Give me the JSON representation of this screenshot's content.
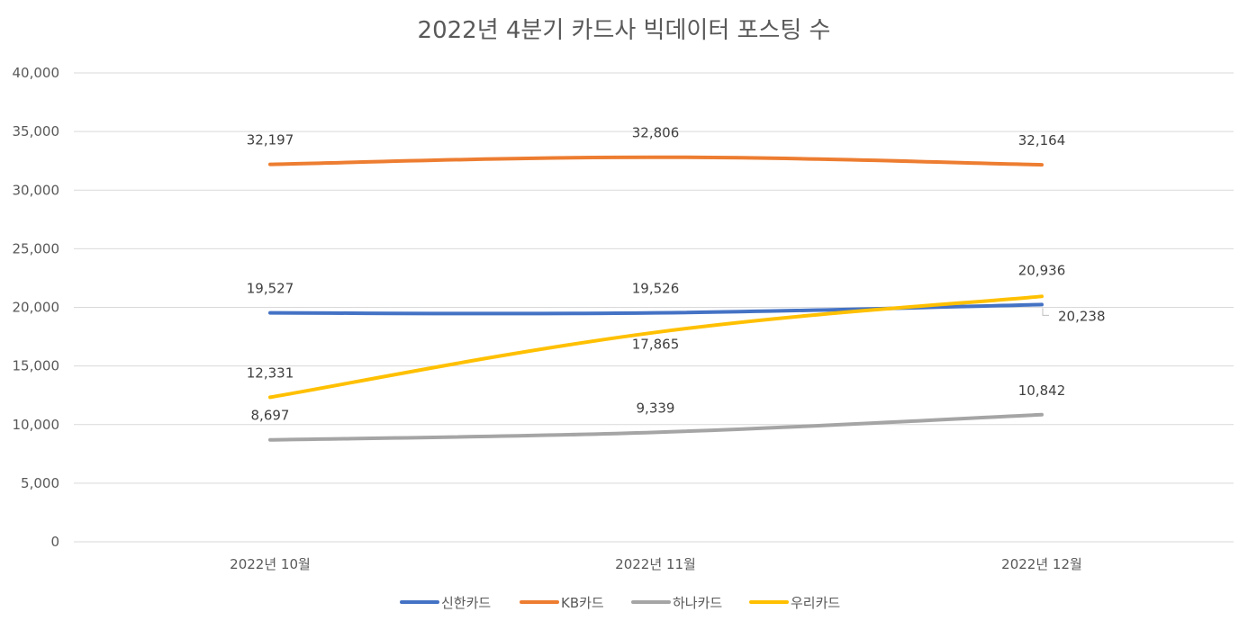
{
  "chart_data": {
    "type": "line",
    "title": "2022년 4분기 카드사 빅데이터 포스팅 수",
    "categories": [
      "2022년 10월",
      "2022년 11월",
      "2022년 12월"
    ],
    "ylim": [
      0,
      40000
    ],
    "yticks": [
      0,
      5000,
      10000,
      15000,
      20000,
      25000,
      30000,
      35000,
      40000
    ],
    "ytick_labels": [
      "0",
      "5,000",
      "10,000",
      "15,000",
      "20,000",
      "25,000",
      "30,000",
      "35,000",
      "40,000"
    ],
    "grid": true,
    "legend_position": "bottom",
    "series": [
      {
        "name": "신한카드",
        "color": "#4472c4",
        "values": [
          19527,
          19526,
          20238
        ],
        "labels": [
          "19,527",
          "19,526",
          "20,238"
        ]
      },
      {
        "name": "KB카드",
        "color": "#ed7d31",
        "values": [
          32197,
          32806,
          32164
        ],
        "labels": [
          "32,197",
          "32,806",
          "32,164"
        ]
      },
      {
        "name": "하나카드",
        "color": "#a5a5a5",
        "values": [
          8697,
          9339,
          10842
        ],
        "labels": [
          "8,697",
          "9,339",
          "10,842"
        ]
      },
      {
        "name": "우리카드",
        "color": "#ffc000",
        "values": [
          12331,
          17865,
          20936
        ],
        "labels": [
          "12,331",
          "17,865",
          "20,936"
        ]
      }
    ]
  }
}
